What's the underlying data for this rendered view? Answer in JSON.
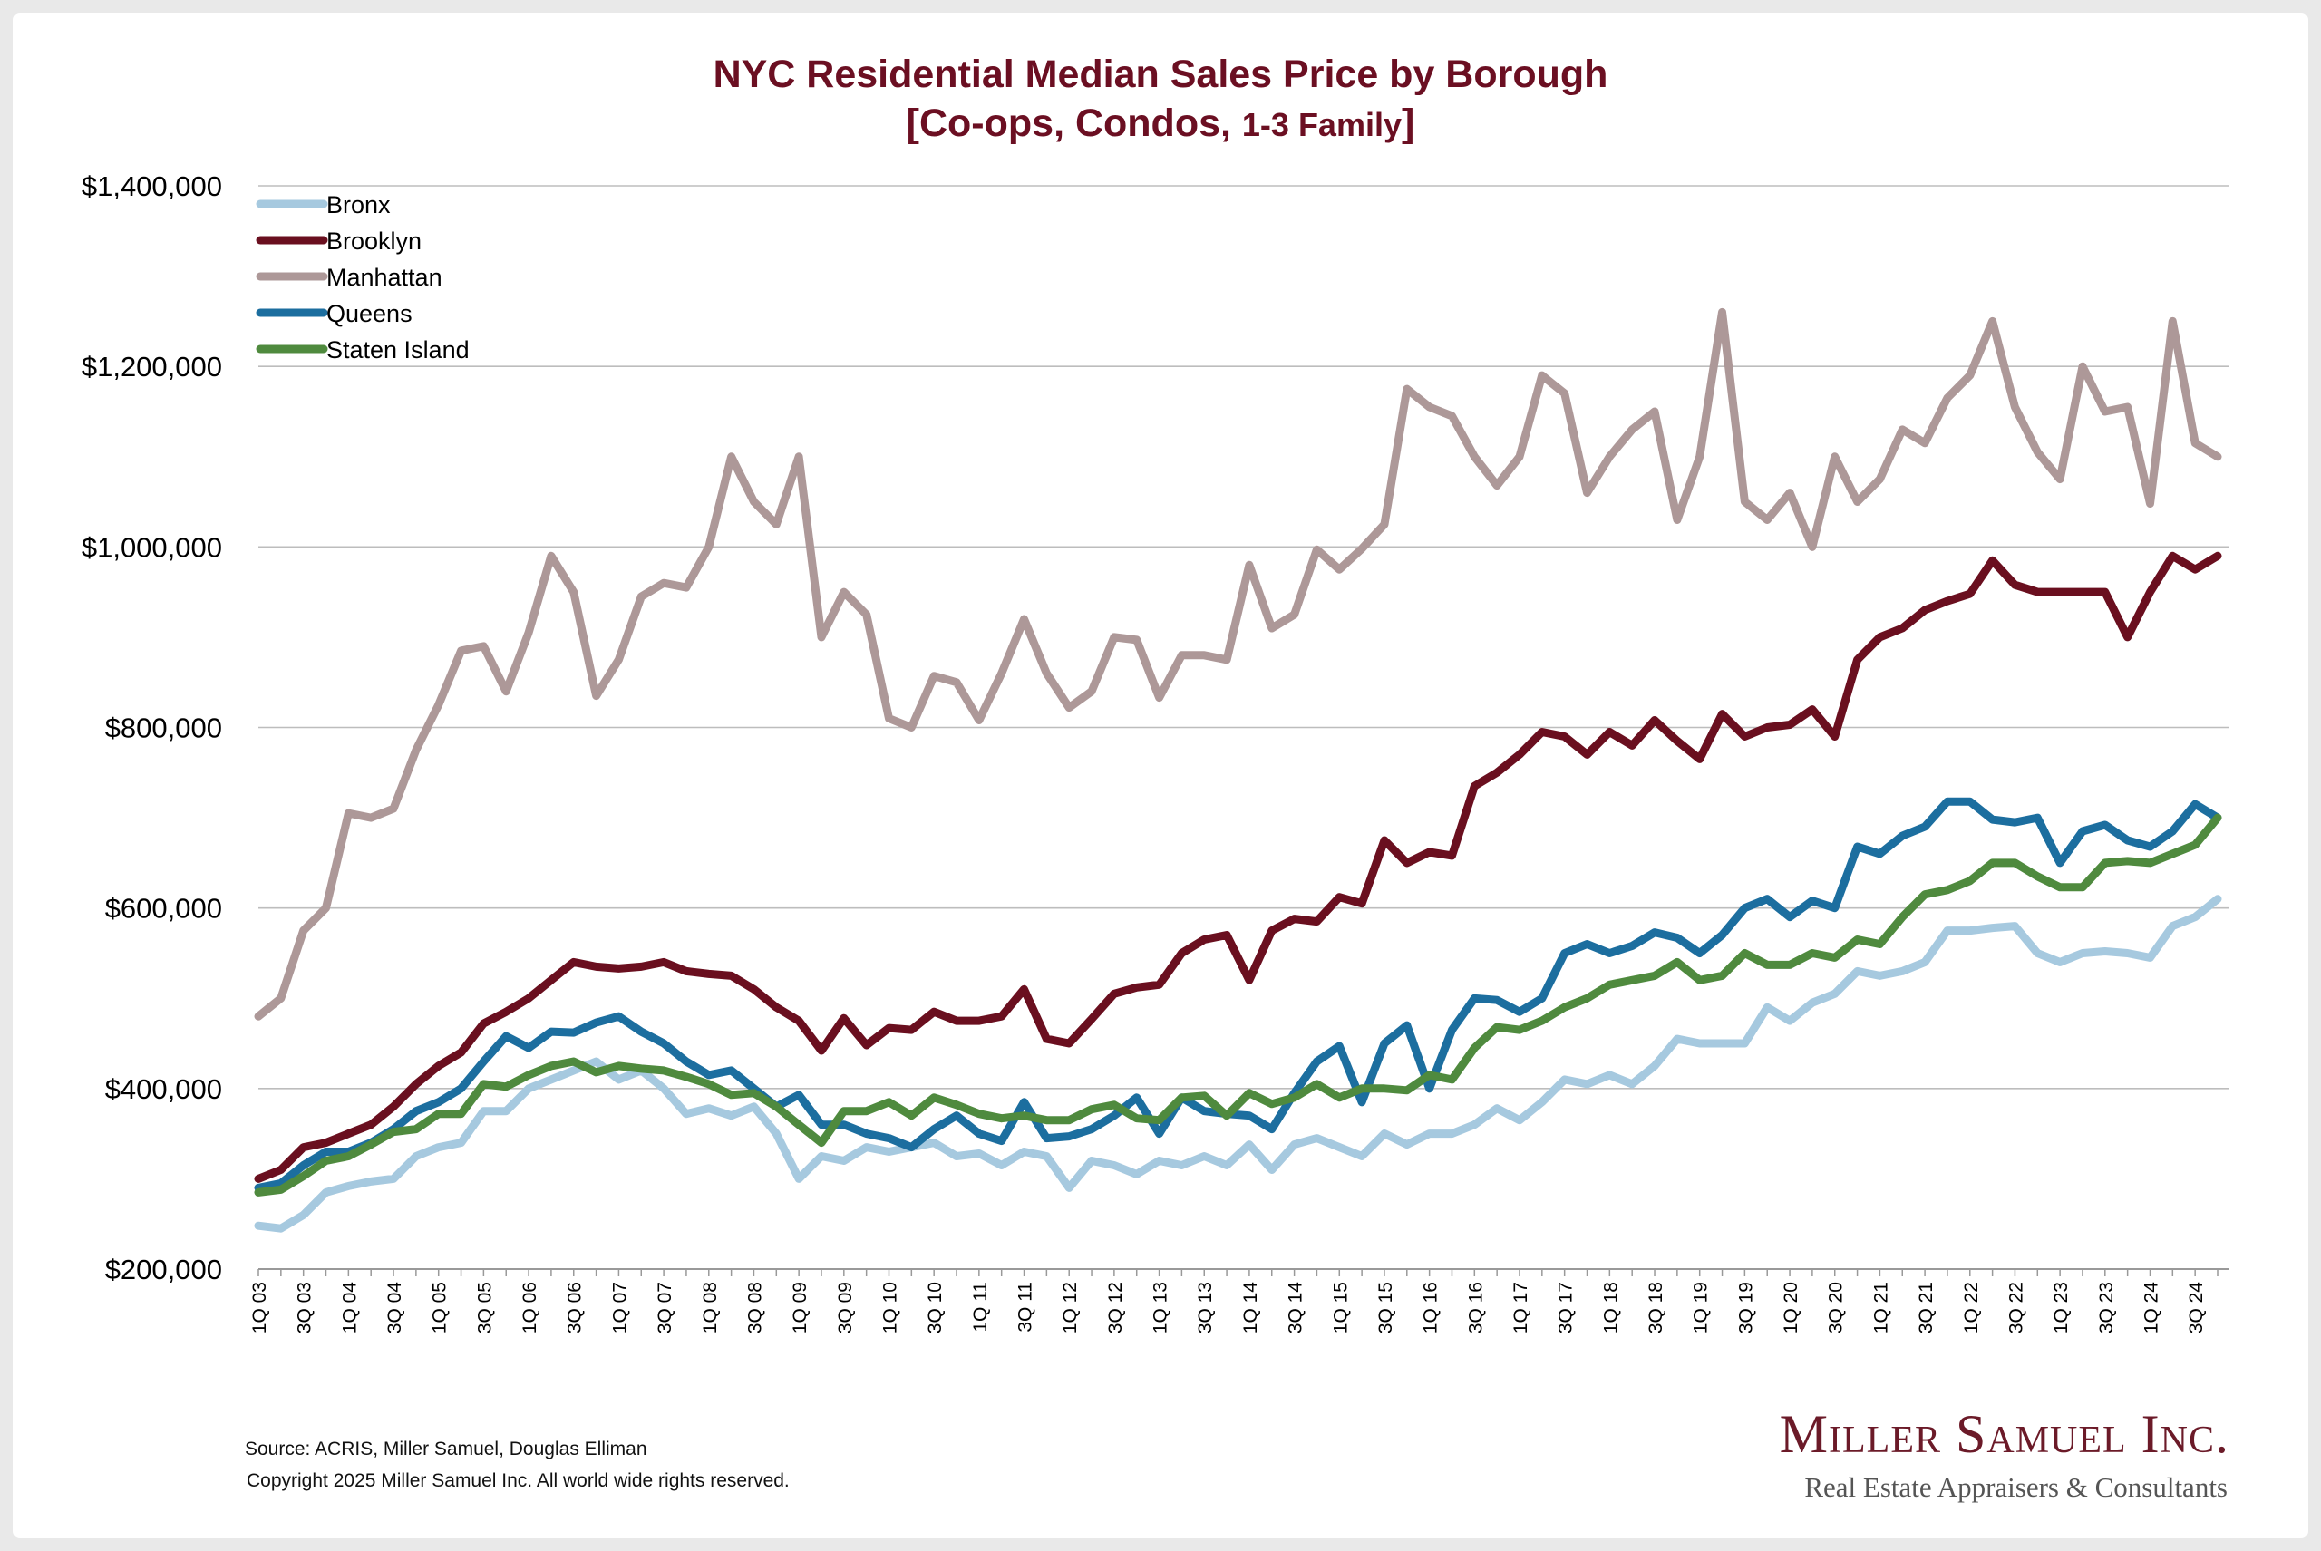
{
  "chart_data": {
    "type": "line",
    "title": "NYC Residential Median Sales Price by Borough",
    "subtitle_parts": [
      "[Co-ops, Condos, ",
      "1-3 Family",
      "]"
    ],
    "ylim": [
      200000,
      1400000
    ],
    "y_ticks": [
      200000,
      400000,
      600000,
      800000,
      1000000,
      1200000,
      1400000
    ],
    "y_tick_labels": [
      "$200,000",
      "$400,000",
      "$600,000",
      "$800,000",
      "$1,000,000",
      "$1,200,000",
      "$1,400,000"
    ],
    "grid": true,
    "legend_position": "top-left",
    "x_tick_labels": [
      "1Q 03",
      "3Q 03",
      "1Q 04",
      "3Q 04",
      "1Q 05",
      "3Q 05",
      "1Q 06",
      "3Q 06",
      "1Q 07",
      "3Q 07",
      "1Q 08",
      "3Q 08",
      "1Q 09",
      "3Q 09",
      "1Q 10",
      "3Q 10",
      "1Q 11",
      "3Q 11",
      "1Q 12",
      "3Q 12",
      "1Q 13",
      "3Q 13",
      "1Q 14",
      "3Q 14",
      "1Q 15",
      "3Q 15",
      "1Q 16",
      "3Q 16",
      "1Q 17",
      "3Q 17",
      "1Q 18",
      "3Q 18",
      "1Q 19",
      "3Q 19",
      "1Q 20",
      "3Q 20",
      "1Q 21",
      "3Q 21",
      "1Q 22",
      "3Q 22",
      "1Q 23",
      "3Q 23",
      "1Q 24",
      "3Q 24"
    ],
    "series": [
      {
        "name": "Bronx",
        "color": "#a6c9df",
        "values": [
          248000,
          245000,
          260000,
          285000,
          292000,
          297000,
          300000,
          325000,
          335000,
          340000,
          375000,
          375000,
          400000,
          410000,
          420000,
          430000,
          410000,
          420000,
          400000,
          372000,
          378000,
          370000,
          380000,
          350000,
          300000,
          325000,
          320000,
          335000,
          330000,
          335000,
          340000,
          325000,
          328000,
          315000,
          330000,
          325000,
          290000,
          320000,
          315000,
          305000,
          320000,
          315000,
          325000,
          315000,
          338000,
          310000,
          338000,
          345000,
          335000,
          325000,
          350000,
          338000,
          350000,
          350000,
          360000,
          378000,
          365000,
          385000,
          410000,
          405000,
          415000,
          405000,
          425000,
          455000,
          450000,
          450000,
          450000,
          490000,
          475000,
          495000,
          505000,
          530000,
          525000,
          530000,
          540000,
          575000,
          575000,
          578000,
          580000,
          550000,
          540000,
          550000,
          552000,
          550000,
          545000,
          580000,
          590000,
          610000
        ]
      },
      {
        "name": "Brooklyn",
        "color": "#6a0f1f",
        "values": [
          300000,
          310000,
          335000,
          340000,
          350000,
          360000,
          380000,
          405000,
          425000,
          440000,
          472000,
          485000,
          500000,
          520000,
          540000,
          535000,
          533000,
          535000,
          540000,
          530000,
          527000,
          525000,
          510000,
          490000,
          475000,
          442000,
          478000,
          448000,
          467000,
          465000,
          485000,
          475000,
          475000,
          480000,
          510000,
          455000,
          450000,
          477000,
          505000,
          512000,
          515000,
          550000,
          565000,
          570000,
          520000,
          575000,
          588000,
          585000,
          612000,
          605000,
          675000,
          650000,
          662000,
          658000,
          735000,
          750000,
          770000,
          795000,
          790000,
          770000,
          795000,
          780000,
          808000,
          785000,
          765000,
          815000,
          790000,
          800000,
          803000,
          820000,
          790000,
          875000,
          900000,
          910000,
          930000,
          940000,
          948000,
          985000,
          958000,
          950000,
          950000,
          950000,
          950000,
          900000,
          950000,
          990000,
          975000,
          990000
        ]
      },
      {
        "name": "Manhattan",
        "color": "#ad9898",
        "values": [
          480000,
          500000,
          575000,
          600000,
          705000,
          700000,
          710000,
          775000,
          825000,
          885000,
          890000,
          840000,
          905000,
          990000,
          950000,
          835000,
          875000,
          945000,
          960000,
          955000,
          1000000,
          1100000,
          1050000,
          1025000,
          1100000,
          900000,
          950000,
          925000,
          810000,
          800000,
          857000,
          850000,
          808000,
          860000,
          920000,
          860000,
          822000,
          840000,
          900000,
          897000,
          833000,
          880000,
          880000,
          875000,
          980000,
          910000,
          925000,
          997000,
          975000,
          998000,
          1025000,
          1175000,
          1155000,
          1145000,
          1100000,
          1068000,
          1100000,
          1190000,
          1170000,
          1060000,
          1100000,
          1130000,
          1150000,
          1030000,
          1100000,
          1260000,
          1050000,
          1030000,
          1060000,
          1000000,
          1100000,
          1050000,
          1075000,
          1130000,
          1115000,
          1165000,
          1190000,
          1250000,
          1155000,
          1105000,
          1075000,
          1200000,
          1150000,
          1155000,
          1048000,
          1250000,
          1115000,
          1100000
        ]
      },
      {
        "name": "Queens",
        "color": "#1c6e9f",
        "values": [
          290000,
          295000,
          315000,
          330000,
          330000,
          340000,
          355000,
          375000,
          385000,
          400000,
          430000,
          458000,
          445000,
          463000,
          462000,
          473000,
          480000,
          463000,
          450000,
          430000,
          415000,
          420000,
          400000,
          380000,
          393000,
          360000,
          360000,
          350000,
          345000,
          335000,
          355000,
          370000,
          350000,
          342000,
          385000,
          345000,
          347000,
          355000,
          370000,
          390000,
          350000,
          390000,
          375000,
          372000,
          370000,
          355000,
          395000,
          430000,
          447000,
          385000,
          450000,
          470000,
          400000,
          465000,
          500000,
          498000,
          485000,
          500000,
          550000,
          560000,
          550000,
          558000,
          573000,
          567000,
          550000,
          570000,
          600000,
          610000,
          590000,
          608000,
          600000,
          668000,
          660000,
          680000,
          690000,
          718000,
          718000,
          698000,
          695000,
          700000,
          650000,
          685000,
          692000,
          675000,
          668000,
          685000,
          715000,
          700000
        ]
      },
      {
        "name": "Staten Island",
        "color": "#4f8a3e",
        "values": [
          285000,
          288000,
          303000,
          320000,
          325000,
          338000,
          352000,
          355000,
          372000,
          372000,
          405000,
          402000,
          415000,
          425000,
          430000,
          418000,
          425000,
          422000,
          420000,
          413000,
          405000,
          393000,
          395000,
          380000,
          360000,
          340000,
          375000,
          375000,
          385000,
          370000,
          390000,
          382000,
          372000,
          367000,
          370000,
          365000,
          365000,
          377000,
          382000,
          367000,
          365000,
          390000,
          392000,
          370000,
          395000,
          383000,
          390000,
          405000,
          390000,
          400000,
          400000,
          398000,
          415000,
          410000,
          445000,
          468000,
          465000,
          475000,
          490000,
          500000,
          515000,
          520000,
          525000,
          540000,
          520000,
          525000,
          550000,
          537000,
          537000,
          550000,
          545000,
          565000,
          560000,
          590000,
          615000,
          620000,
          630000,
          650000,
          650000,
          635000,
          623000,
          623000,
          650000,
          652000,
          650000,
          660000,
          670000,
          700000
        ]
      }
    ]
  },
  "footer": {
    "source": "Source: ACRIS, Miller Samuel, Douglas Elliman",
    "copyright": "Copyright 2025 Miller Samuel Inc.  All world wide rights reserved.",
    "logo_main": "Miller Samuel Inc.",
    "logo_sub": "Real Estate Appraisers & Consultants"
  }
}
